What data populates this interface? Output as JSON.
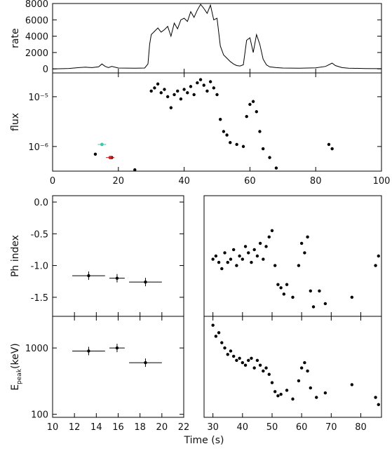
{
  "chart_data": [
    {
      "type": "line",
      "ylabel": "rate",
      "xlim": [
        0,
        100
      ],
      "ylim": [
        -500,
        8000
      ],
      "yticks": [
        "0",
        "2000",
        "4000",
        "6000",
        "8000"
      ],
      "xticks": [],
      "series": [
        {
          "x": [
            0,
            5,
            8,
            10,
            12,
            14,
            15,
            16,
            17,
            18,
            20,
            25,
            28,
            29,
            29.5,
            30,
            31,
            32,
            33,
            34,
            35,
            36,
            37,
            38,
            39,
            40,
            41,
            42,
            43,
            44,
            45,
            46,
            47,
            48,
            49,
            50,
            51,
            52,
            53,
            54,
            55,
            56,
            57,
            58,
            59,
            60,
            61,
            62,
            63,
            64,
            65,
            66,
            68,
            70,
            75,
            80,
            83,
            85,
            86,
            88,
            90,
            95,
            100
          ],
          "y": [
            0,
            50,
            150,
            200,
            150,
            250,
            600,
            300,
            150,
            300,
            100,
            80,
            100,
            600,
            3000,
            4200,
            4600,
            5000,
            4500,
            4800,
            5200,
            4000,
            5600,
            4900,
            6000,
            6200,
            5800,
            7000,
            6300,
            7200,
            7900,
            7400,
            6800,
            7800,
            6000,
            6200,
            2800,
            1700,
            1300,
            900,
            600,
            400,
            350,
            500,
            3500,
            3800,
            2000,
            4200,
            3000,
            1200,
            500,
            250,
            150,
            100,
            80,
            120,
            300,
            700,
            400,
            150,
            80,
            40,
            20
          ]
        }
      ]
    },
    {
      "type": "scatter",
      "ylabel": "flux",
      "xlim": [
        0,
        100
      ],
      "ylim": [
        3.2e-07,
        3e-05
      ],
      "yscale": "log",
      "yticks": [
        "10⁻⁶",
        "10⁻⁵"
      ],
      "xticks": [
        "0",
        "20",
        "40",
        "60",
        "80",
        "100"
      ],
      "points": {
        "x": [
          13,
          18,
          25,
          30,
          31,
          32,
          33,
          34,
          35,
          36,
          37,
          38,
          39,
          40,
          41,
          42,
          43,
          44,
          45,
          46,
          47,
          48,
          49,
          50,
          51,
          52,
          53,
          54,
          56,
          58,
          59,
          60,
          61,
          62,
          63,
          64,
          66,
          68,
          84,
          85
        ],
        "y": [
          7e-07,
          6e-07,
          3.4e-07,
          1.3e-05,
          1.5e-05,
          1.8e-05,
          1.2e-05,
          1.4e-05,
          1e-05,
          6e-06,
          1.1e-05,
          1.3e-05,
          9e-06,
          1.4e-05,
          1.2e-05,
          1.6e-05,
          1.1e-05,
          1.9e-05,
          2.2e-05,
          1.7e-05,
          1.3e-05,
          2e-05,
          1.5e-05,
          1.1e-05,
          3.5e-06,
          2e-06,
          1.7e-06,
          1.2e-06,
          1.1e-06,
          1e-06,
          4e-06,
          7e-06,
          8e-06,
          5e-06,
          2e-06,
          9e-07,
          6e-07,
          3.7e-07,
          1.1e-06,
          9e-07
        ]
      },
      "colored_points": [
        {
          "x": 15,
          "y": 1.1e-06,
          "color": "#3cc9a8"
        },
        {
          "x": 17.5,
          "y": 6e-07,
          "color": "#d42020"
        }
      ]
    },
    {
      "type": "scatter",
      "ylabel": "Ph index",
      "xlim": [
        10,
        22
      ],
      "ylim": [
        -1.8,
        0.1
      ],
      "yticks": [
        "0.0",
        "-0.5",
        "-1.0",
        "-1.5"
      ],
      "points": {
        "x": [
          13.3,
          15.9,
          18.5
        ],
        "y": [
          -1.16,
          -1.2,
          -1.26
        ]
      },
      "xerr": [
        1.5,
        0.7,
        1.5
      ]
    },
    {
      "type": "scatter",
      "xlim": [
        27,
        87
      ],
      "ylim": [
        -1.8,
        0.1
      ],
      "points": {
        "x": [
          30,
          31,
          32,
          33,
          34,
          35,
          36,
          37,
          38,
          39,
          40,
          41,
          42,
          43,
          44,
          45,
          46,
          47,
          48,
          49,
          50,
          51,
          52,
          53,
          54,
          55,
          57,
          59,
          60,
          61,
          62,
          63,
          64,
          66,
          68,
          77,
          85,
          86
        ],
        "y": [
          -0.9,
          -0.85,
          -0.95,
          -1.05,
          -0.8,
          -0.95,
          -0.9,
          -0.75,
          -1.0,
          -0.85,
          -0.9,
          -0.7,
          -0.8,
          -0.95,
          -0.75,
          -0.85,
          -0.65,
          -0.9,
          -0.7,
          -0.55,
          -0.45,
          -1.0,
          -1.3,
          -1.35,
          -1.45,
          -1.3,
          -1.5,
          -1.0,
          -0.65,
          -0.8,
          -0.55,
          -1.4,
          -1.65,
          -1.4,
          -1.6,
          -1.5,
          -1.0,
          -0.85
        ]
      }
    },
    {
      "type": "scatter",
      "ylabel": "E_peak(keV)",
      "xlim": [
        10,
        22
      ],
      "ylim": [
        90,
        3000
      ],
      "yscale": "log",
      "yticks": [
        "100",
        "1000"
      ],
      "xticks": [
        "10",
        "12",
        "14",
        "16",
        "18",
        "20",
        "22"
      ],
      "points": {
        "x": [
          13.3,
          15.9,
          18.5
        ],
        "y": [
          900,
          1000,
          600
        ]
      },
      "xerr": [
        1.5,
        0.7,
        1.5
      ]
    },
    {
      "type": "scatter",
      "xlabel": "Time (s)",
      "xlim": [
        27,
        87
      ],
      "ylim": [
        90,
        3000
      ],
      "yscale": "log",
      "xticks": [
        "30",
        "40",
        "50",
        "60",
        "70",
        "80"
      ],
      "points": {
        "x": [
          30,
          31,
          32,
          33,
          34,
          35,
          36,
          37,
          38,
          39,
          40,
          41,
          42,
          43,
          44,
          45,
          46,
          47,
          48,
          49,
          50,
          51,
          52,
          53,
          55,
          57,
          59,
          60,
          61,
          62,
          63,
          65,
          68,
          77,
          85,
          86
        ],
        "y": [
          2200,
          1500,
          1700,
          1200,
          1000,
          800,
          900,
          750,
          650,
          700,
          600,
          550,
          650,
          700,
          500,
          650,
          550,
          450,
          500,
          400,
          300,
          220,
          190,
          200,
          230,
          170,
          320,
          500,
          600,
          450,
          250,
          180,
          210,
          280,
          180,
          140
        ]
      }
    }
  ]
}
